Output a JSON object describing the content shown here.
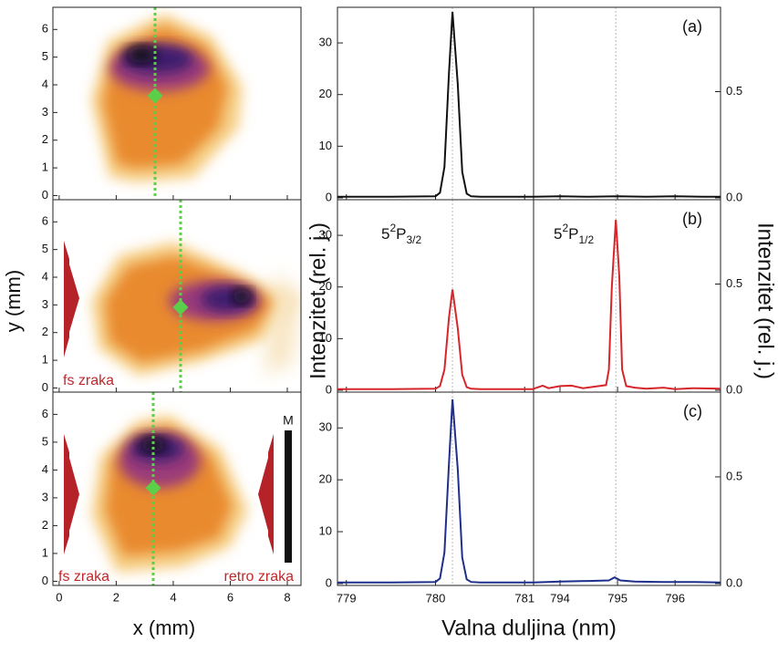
{
  "image_panels": {
    "xlim": [
      -0.22,
      8.48
    ],
    "xticks": [
      0,
      2,
      4,
      6,
      8
    ],
    "ylim": [
      -0.15,
      6.8
    ],
    "yticks": [
      0,
      1,
      2,
      3,
      4,
      5,
      6
    ],
    "xlabel": "x (mm)",
    "ylabel": "y (mm)",
    "annotations": [
      "fs zraka",
      "fs zraka",
      "retro zraka",
      "M"
    ]
  },
  "chart_data": {
    "type": "line",
    "xlabel": "Valna duljina (nm)",
    "ylabel": "Intenzitet (rel. j.)",
    "y2label": "Intenzitet (rel. j.)",
    "segments": [
      {
        "xlim": [
          778.9,
          781.1
        ],
        "xticks": [
          779,
          780,
          781
        ]
      },
      {
        "xlim": [
          793.54,
          796.79
        ],
        "xticks": [
          794,
          795,
          796
        ]
      }
    ],
    "ylim": [
      -0.36,
      36.9
    ],
    "yticks": [
      0,
      10,
      20,
      30
    ],
    "y2lim": [
      -0.0086,
      0.897
    ],
    "y2ticks": [
      {
        "value": 0,
        "label": "0.0"
      },
      0.5
    ],
    "reference_lines": [
      780.19,
      794.97
    ],
    "panels": [
      {
        "label": "(a)",
        "color": "#111111",
        "series": [
          {
            "x": [
              778.9,
              779.5,
              780.0,
              780.05,
              780.1,
              780.15,
              780.19,
              780.25,
              780.3,
              780.35,
              780.4,
              780.5,
              781.0,
              781.1
            ],
            "values": [
              0.2,
              0.2,
              0.3,
              1,
              6,
              24,
              36,
              22,
              5,
              0.8,
              0.3,
              0.2,
              0.2,
              0.2
            ]
          },
          {
            "x": [
              793.54,
              794.0,
              794.5,
              795.0,
              795.5,
              796.0,
              796.5,
              796.79
            ],
            "values": [
              0.2,
              0.3,
              0.2,
              0.3,
              0.2,
              0.3,
              0.2,
              0.2
            ]
          }
        ]
      },
      {
        "label": "(b)",
        "color": "#d7262b",
        "series": [
          {
            "x": [
              778.9,
              779.5,
              780.0,
              780.05,
              780.1,
              780.15,
              780.19,
              780.25,
              780.3,
              780.35,
              780.4,
              780.5,
              781.0,
              781.1
            ],
            "values": [
              0.2,
              0.2,
              0.3,
              0.8,
              4,
              14,
              19.5,
              12,
              3,
              0.6,
              0.3,
              0.2,
              0.2,
              0.2
            ]
          },
          {
            "x": [
              793.54,
              793.7,
              793.8,
              794.0,
              794.2,
              794.4,
              794.6,
              794.8,
              794.85,
              794.9,
              794.97,
              795.03,
              795.08,
              795.15,
              795.3,
              795.5,
              795.8,
              796.0,
              796.3,
              796.79
            ],
            "values": [
              0.3,
              0.9,
              0.4,
              0.8,
              0.9,
              0.4,
              0.7,
              1.0,
              4,
              20,
              33,
              22,
              4,
              0.8,
              0.5,
              0.3,
              0.5,
              0.2,
              0.4,
              0.3
            ]
          }
        ]
      },
      {
        "label": "(c)",
        "color": "#1f2f8c",
        "series": [
          {
            "x": [
              778.9,
              779.5,
              780.0,
              780.05,
              780.1,
              780.15,
              780.19,
              780.25,
              780.3,
              780.35,
              780.4,
              780.5,
              781.0,
              781.1
            ],
            "values": [
              0.2,
              0.2,
              0.3,
              1,
              6,
              23,
              35.5,
              22,
              5,
              0.8,
              0.3,
              0.2,
              0.2,
              0.2
            ]
          },
          {
            "x": [
              793.54,
              794.0,
              794.5,
              794.85,
              794.95,
              795.05,
              795.3,
              795.8,
              796.3,
              796.79
            ],
            "values": [
              0.2,
              0.4,
              0.5,
              0.6,
              1.2,
              0.6,
              0.4,
              0.3,
              0.3,
              0.2
            ]
          }
        ]
      }
    ],
    "annotations": [
      {
        "base": "5",
        "sup": "2",
        "main": "P",
        "sub": "3/2"
      },
      {
        "base": "5",
        "sup": "2",
        "main": "P",
        "sub": "1/2"
      }
    ]
  }
}
